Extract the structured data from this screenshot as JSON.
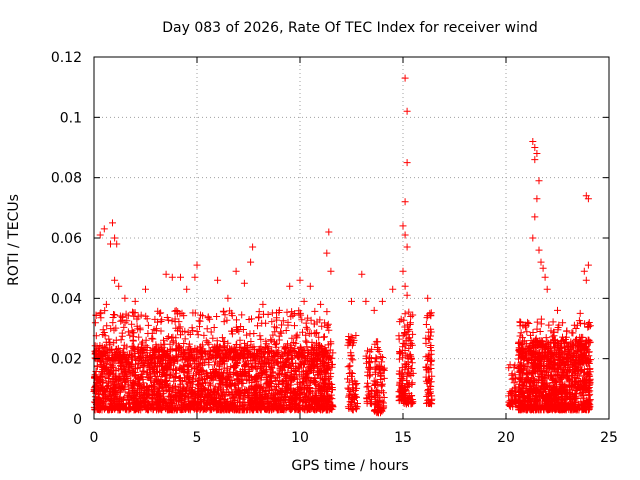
{
  "chart_data": {
    "type": "scatter",
    "title": "Day 083 of 2026, Rate Of TEC Index for receiver wind",
    "xlabel": "GPS time / hours",
    "ylabel": "ROTI / TECUs",
    "xlim": [
      0,
      25
    ],
    "ylim": [
      0,
      0.12
    ],
    "xticks": [
      0,
      5,
      10,
      15,
      20,
      25
    ],
    "xtick_labels": [
      "0",
      "5",
      "10",
      "15",
      "20",
      "25"
    ],
    "yticks": [
      0,
      0.02,
      0.04,
      0.06,
      0.08,
      0.1,
      0.12
    ],
    "ytick_labels": [
      "0",
      "0.02",
      "0.04",
      "0.06",
      "0.08",
      "0.1",
      "0.12"
    ],
    "grid": true,
    "marker": "+",
    "color": "#ff0000",
    "series": [
      {
        "name": "ROTI",
        "points": [
          [
            0.3,
            0.061
          ],
          [
            0.5,
            0.063
          ],
          [
            0.9,
            0.065
          ],
          [
            1.0,
            0.06
          ],
          [
            1.1,
            0.058
          ],
          [
            0.8,
            0.058
          ],
          [
            1.0,
            0.046
          ],
          [
            1.2,
            0.044
          ],
          [
            0.6,
            0.038
          ],
          [
            1.5,
            0.04
          ],
          [
            2.0,
            0.039
          ],
          [
            2.5,
            0.043
          ],
          [
            3.5,
            0.048
          ],
          [
            3.8,
            0.047
          ],
          [
            4.2,
            0.047
          ],
          [
            4.5,
            0.043
          ],
          [
            5.0,
            0.051
          ],
          [
            4.9,
            0.047
          ],
          [
            6.0,
            0.046
          ],
          [
            6.5,
            0.04
          ],
          [
            6.9,
            0.049
          ],
          [
            7.3,
            0.045
          ],
          [
            7.7,
            0.057
          ],
          [
            7.6,
            0.052
          ],
          [
            8.2,
            0.038
          ],
          [
            9.0,
            0.036
          ],
          [
            9.5,
            0.044
          ],
          [
            10.0,
            0.046
          ],
          [
            10.5,
            0.044
          ],
          [
            10.2,
            0.039
          ],
          [
            11.0,
            0.038
          ],
          [
            11.4,
            0.062
          ],
          [
            11.3,
            0.055
          ],
          [
            11.5,
            0.049
          ],
          [
            12.5,
            0.039
          ],
          [
            13.0,
            0.048
          ],
          [
            13.2,
            0.039
          ],
          [
            13.6,
            0.036
          ],
          [
            14.0,
            0.039
          ],
          [
            14.5,
            0.043
          ],
          [
            15.1,
            0.113
          ],
          [
            15.2,
            0.102
          ],
          [
            15.2,
            0.085
          ],
          [
            15.1,
            0.072
          ],
          [
            15.0,
            0.064
          ],
          [
            15.1,
            0.061
          ],
          [
            15.2,
            0.057
          ],
          [
            15.0,
            0.049
          ],
          [
            15.1,
            0.044
          ],
          [
            15.2,
            0.041
          ],
          [
            16.2,
            0.04
          ],
          [
            16.3,
            0.035
          ],
          [
            21.3,
            0.092
          ],
          [
            21.4,
            0.09
          ],
          [
            21.5,
            0.088
          ],
          [
            21.4,
            0.086
          ],
          [
            21.6,
            0.079
          ],
          [
            21.5,
            0.073
          ],
          [
            21.4,
            0.067
          ],
          [
            21.3,
            0.06
          ],
          [
            21.6,
            0.056
          ],
          [
            21.7,
            0.052
          ],
          [
            21.8,
            0.05
          ],
          [
            21.9,
            0.047
          ],
          [
            22.0,
            0.043
          ],
          [
            22.5,
            0.036
          ],
          [
            23.9,
            0.074
          ],
          [
            24.0,
            0.073
          ],
          [
            23.8,
            0.049
          ],
          [
            24.0,
            0.051
          ],
          [
            23.9,
            0.046
          ],
          [
            23.6,
            0.035
          ],
          [
            23.4,
            0.03
          ],
          [
            20.2,
            0.018
          ],
          [
            20.3,
            0.015
          ],
          [
            20.4,
            0.012
          ],
          [
            20.3,
            0.008
          ],
          [
            20.2,
            0.005
          ],
          [
            20.8,
            0.027
          ],
          [
            21.0,
            0.025
          ]
        ]
      }
    ],
    "dense_bands": [
      {
        "x": [
          0.0,
          11.6
        ],
        "y": [
          0.003,
          0.024
        ],
        "count": 2600
      },
      {
        "x": [
          0.0,
          11.6
        ],
        "y": [
          0.02,
          0.036
        ],
        "count": 500
      },
      {
        "x": [
          12.3,
          12.8
        ],
        "y": [
          0.003,
          0.028
        ],
        "count": 70
      },
      {
        "x": [
          13.2,
          13.5
        ],
        "y": [
          0.005,
          0.024
        ],
        "count": 40
      },
      {
        "x": [
          13.6,
          14.1
        ],
        "y": [
          0.002,
          0.026
        ],
        "count": 90
      },
      {
        "x": [
          14.8,
          15.5
        ],
        "y": [
          0.005,
          0.036
        ],
        "count": 160
      },
      {
        "x": [
          16.1,
          16.4
        ],
        "y": [
          0.005,
          0.036
        ],
        "count": 70
      },
      {
        "x": [
          20.1,
          20.5
        ],
        "y": [
          0.004,
          0.018
        ],
        "count": 40
      },
      {
        "x": [
          20.6,
          24.1
        ],
        "y": [
          0.003,
          0.026
        ],
        "count": 1100
      },
      {
        "x": [
          20.6,
          24.1
        ],
        "y": [
          0.02,
          0.034
        ],
        "count": 160
      }
    ]
  }
}
